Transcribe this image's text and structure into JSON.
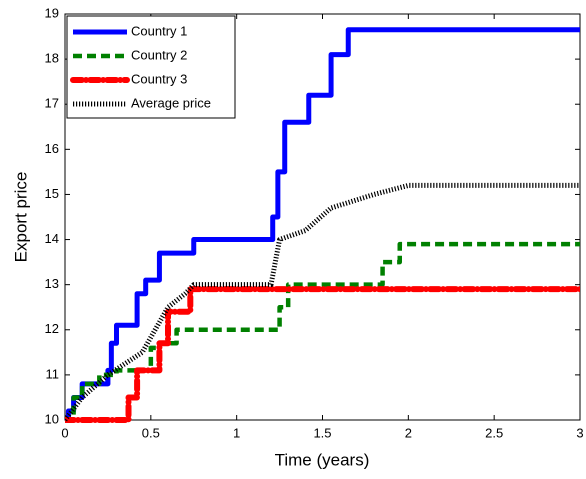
{
  "chart_data": {
    "type": "line",
    "x_label": "Time (years)",
    "y_label": "Export price",
    "xlim": [
      0,
      3
    ],
    "xticks": [
      0,
      0.5,
      1,
      1.5,
      2,
      2.5,
      3
    ],
    "ylim": [
      10,
      19
    ],
    "yticks": [
      10,
      11,
      12,
      13,
      14,
      15,
      16,
      17,
      18,
      19
    ],
    "grid": false,
    "legend_position": "upper-left",
    "series": [
      {
        "name": "Country 1",
        "color": "#0000ff",
        "style": "solid",
        "x": [
          0,
          0.02,
          0.02,
          0.05,
          0.05,
          0.1,
          0.1,
          0.25,
          0.25,
          0.27,
          0.27,
          0.3,
          0.3,
          0.42,
          0.42,
          0.47,
          0.47,
          0.55,
          0.55,
          0.75,
          0.75,
          1.21,
          1.21,
          1.24,
          1.24,
          1.28,
          1.28,
          1.42,
          1.42,
          1.55,
          1.55,
          1.65,
          1.65,
          3
        ],
        "values": [
          10,
          10,
          10.2,
          10.2,
          10.5,
          10.5,
          10.8,
          10.8,
          11.1,
          11.1,
          11.7,
          11.7,
          12.1,
          12.1,
          12.8,
          12.8,
          13.1,
          13.1,
          13.7,
          13.7,
          14.0,
          14.0,
          14.5,
          14.5,
          15.5,
          15.5,
          16.6,
          16.6,
          17.2,
          17.2,
          18.1,
          18.1,
          18.65,
          18.65
        ]
      },
      {
        "name": "Country 2",
        "color": "#008000",
        "style": "dashed",
        "x": [
          0,
          0.05,
          0.05,
          0.1,
          0.1,
          0.2,
          0.2,
          0.3,
          0.3,
          0.5,
          0.5,
          0.55,
          0.55,
          0.65,
          0.65,
          1.25,
          1.25,
          1.3,
          1.3,
          1.85,
          1.85,
          1.95,
          1.95,
          3
        ],
        "values": [
          10,
          10,
          10.5,
          10.5,
          10.8,
          10.8,
          11.0,
          11.0,
          11.1,
          11.1,
          11.6,
          11.6,
          11.7,
          11.7,
          12.0,
          12.0,
          12.5,
          12.5,
          13.0,
          13.0,
          13.5,
          13.5,
          13.9,
          13.9
        ]
      },
      {
        "name": "Country 3",
        "color": "#ff0000",
        "style": "dash-dot",
        "x": [
          0,
          0.37,
          0.37,
          0.42,
          0.42,
          0.55,
          0.55,
          0.6,
          0.6,
          0.73,
          0.73,
          3
        ],
        "values": [
          10,
          10,
          10.5,
          10.5,
          11.1,
          11.1,
          11.7,
          11.7,
          12.4,
          12.4,
          12.9,
          12.9
        ]
      },
      {
        "name": "Average price",
        "color": "#000000",
        "style": "dotted",
        "x": [
          0,
          0.1,
          0.25,
          0.45,
          0.6,
          0.7,
          0.75,
          1.2,
          1.25,
          1.4,
          1.55,
          1.8,
          2.0,
          3
        ],
        "values": [
          10,
          10.5,
          11,
          11.5,
          12.5,
          12.8,
          13.0,
          13.0,
          14.0,
          14.2,
          14.7,
          15.0,
          15.2,
          15.2
        ]
      }
    ]
  }
}
